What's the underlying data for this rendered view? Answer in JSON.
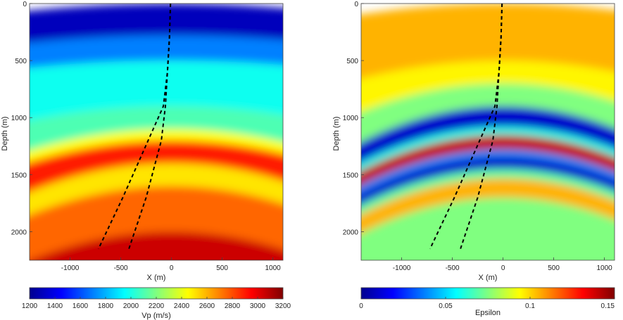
{
  "chart_data": [
    {
      "type": "heatmap",
      "title": "",
      "xlabel": "X (m)",
      "ylabel": "Depth (m)",
      "xlim": [
        -1400,
        1100
      ],
      "ylim": [
        2250,
        0
      ],
      "x_ticks": [
        -1000,
        -500,
        0,
        500,
        1000
      ],
      "y_ticks": [
        0,
        500,
        1000,
        1500,
        2000
      ],
      "x_tick_labels": [
        "-1000",
        "-500",
        "0",
        "500",
        "1000"
      ],
      "y_tick_labels": [
        "0",
        "500",
        "1000",
        "1500",
        "2000"
      ],
      "colorbar": {
        "label": "Vp (m/s)",
        "range": [
          1200,
          3200
        ],
        "ticks": [
          1200,
          1400,
          1600,
          1800,
          2000,
          2200,
          2400,
          2600,
          2800,
          3000,
          3200
        ],
        "tick_labels": [
          "1200",
          "1400",
          "1600",
          "1800",
          "2000",
          "2200",
          "2400",
          "2600",
          "2800",
          "3000",
          "3200"
        ],
        "colormap": "jet"
      },
      "layers": [
        {
          "top_depth_center": 0,
          "value": 1300,
          "curvature": 0.2
        },
        {
          "top_depth_center": 280,
          "value": 1700,
          "curvature": 0.2
        },
        {
          "top_depth_center": 500,
          "value": 1980,
          "curvature": 0.2
        },
        {
          "top_depth_center": 900,
          "value": 2100,
          "curvature": 0.4
        },
        {
          "top_depth_center": 1100,
          "value": 2450,
          "curvature": 0.6
        },
        {
          "top_depth_center": 1200,
          "value": 2900,
          "curvature": 0.6
        },
        {
          "top_depth_center": 1400,
          "value": 2500,
          "curvature": 0.8
        },
        {
          "top_depth_center": 1600,
          "value": 2750,
          "curvature": 0.8
        },
        {
          "top_depth_center": 2000,
          "value": 3050,
          "curvature": 0.8
        }
      ],
      "wells": [
        {
          "x": [
            -10,
            -20,
            -40,
            -80,
            -230,
            -480,
            -720
          ],
          "depth": [
            0,
            300,
            600,
            900,
            1200,
            1700,
            2150
          ]
        },
        {
          "x": [
            -10,
            -20,
            -40,
            -60,
            -100,
            -250,
            -420
          ],
          "depth": [
            0,
            300,
            600,
            900,
            1200,
            1700,
            2150
          ]
        }
      ]
    },
    {
      "type": "heatmap",
      "title": "",
      "xlabel": "X (m)",
      "ylabel": "Depth (m)",
      "xlim": [
        -1400,
        1100
      ],
      "ylim": [
        2250,
        0
      ],
      "x_ticks": [
        -1000,
        -500,
        0,
        500,
        1000
      ],
      "y_ticks": [
        0,
        500,
        1000,
        1500,
        2000
      ],
      "x_tick_labels": [
        "-1000",
        "-500",
        "0",
        "500",
        "1000"
      ],
      "y_tick_labels": [
        "0",
        "500",
        "1000",
        "1500",
        "2000"
      ],
      "colorbar": {
        "label": "Epsilon",
        "range": [
          0,
          0.15
        ],
        "ticks": [
          0,
          0.05,
          0.1,
          0.15
        ],
        "tick_labels": [
          "0",
          "0.05",
          "0.1",
          "0.15"
        ],
        "colormap": "jet"
      },
      "layers": [
        {
          "top_depth_center": 0,
          "value": 0.105,
          "curvature": 0.3
        },
        {
          "top_depth_center": 500,
          "value": 0.095,
          "curvature": 0.5
        },
        {
          "top_depth_center": 700,
          "value": 0.075,
          "curvature": 0.8
        },
        {
          "top_depth_center": 900,
          "value": 0.01,
          "curvature": 1.0
        },
        {
          "top_depth_center": 1080,
          "value": 0.06,
          "curvature": 1.0
        },
        {
          "top_depth_center": 1150,
          "value": 0.14,
          "curvature": 1.0
        },
        {
          "top_depth_center": 1280,
          "value": 0.04,
          "curvature": 1.0
        },
        {
          "top_depth_center": 1340,
          "value": 0.01,
          "curvature": 1.0
        },
        {
          "top_depth_center": 1450,
          "value": 0.07,
          "curvature": 1.0
        },
        {
          "top_depth_center": 1530,
          "value": 0.105,
          "curvature": 1.0
        },
        {
          "top_depth_center": 1700,
          "value": 0.075,
          "curvature": 1.0
        }
      ],
      "wells": [
        {
          "x": [
            -10,
            -20,
            -40,
            -80,
            -230,
            -480,
            -720
          ],
          "depth": [
            0,
            300,
            600,
            900,
            1200,
            1700,
            2150
          ]
        },
        {
          "x": [
            -10,
            -20,
            -40,
            -60,
            -100,
            -250,
            -420
          ],
          "depth": [
            0,
            300,
            600,
            900,
            1200,
            1700,
            2150
          ]
        }
      ]
    }
  ]
}
